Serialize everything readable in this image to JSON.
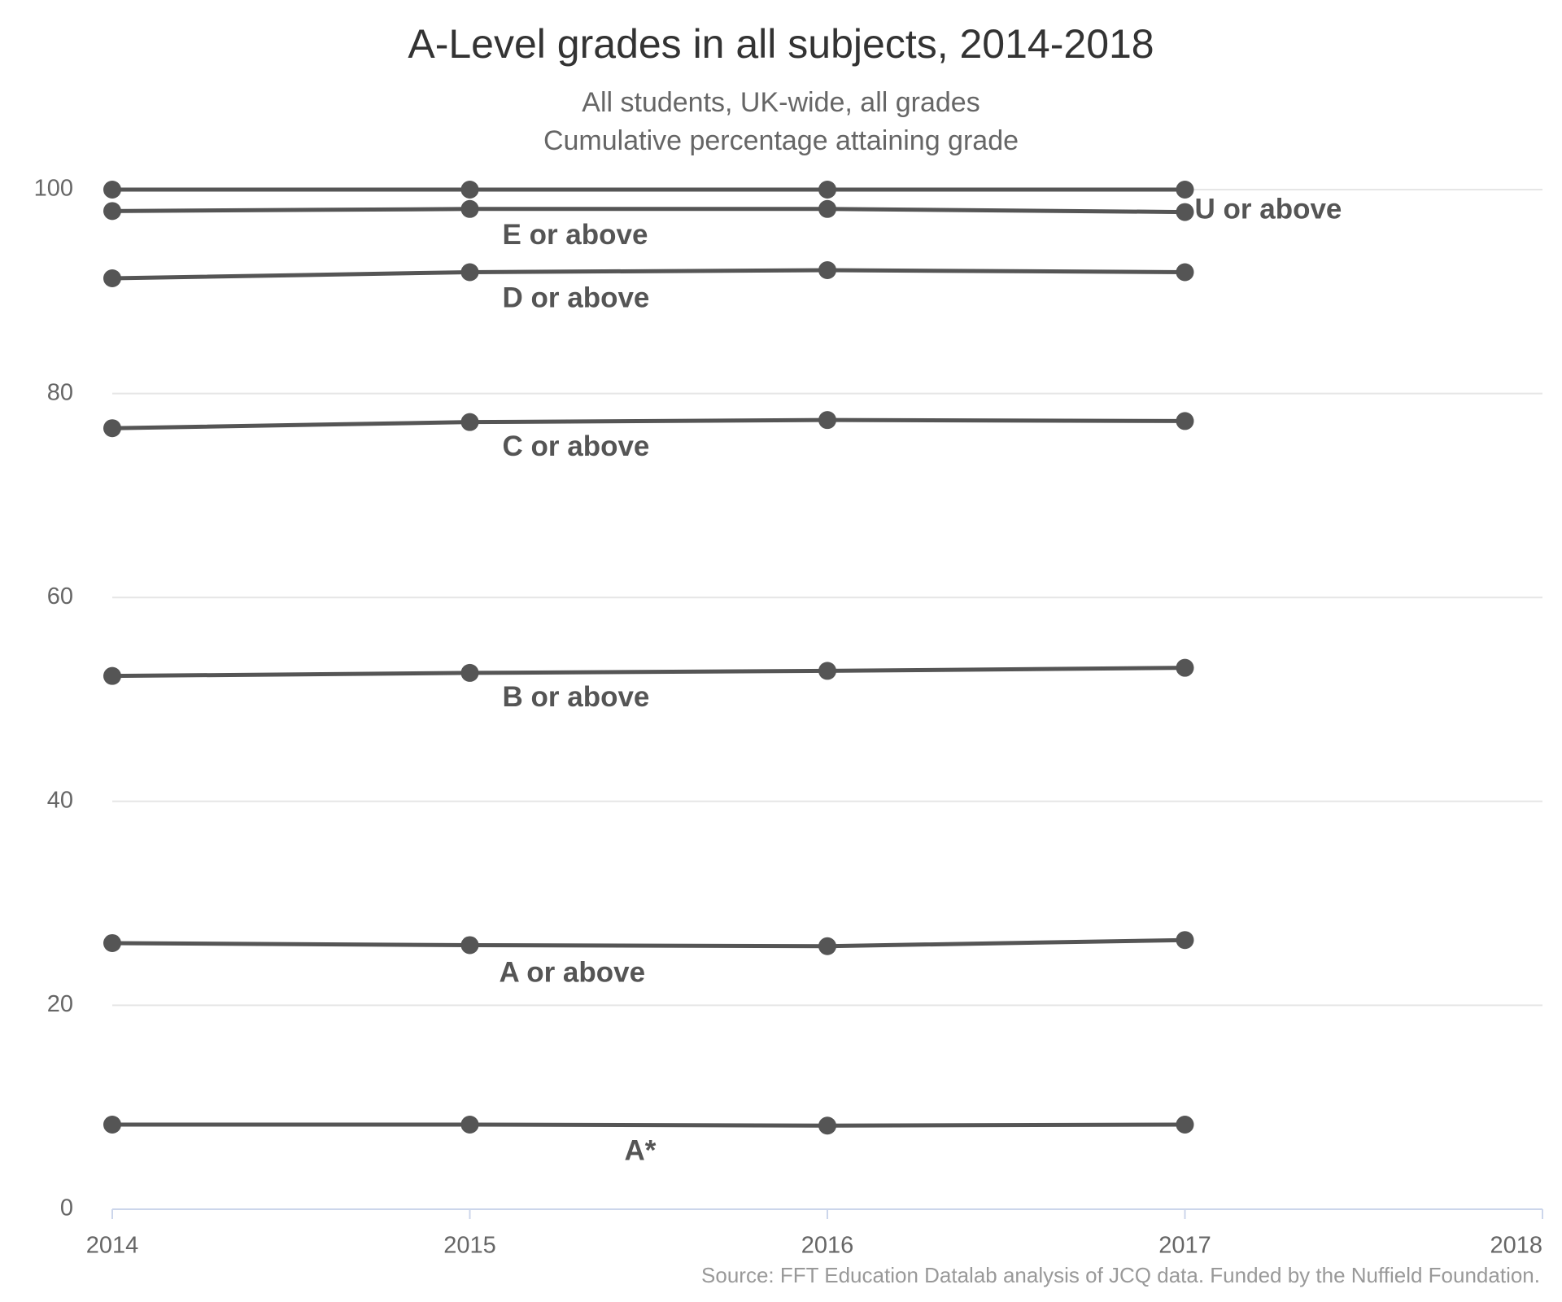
{
  "chart_data": {
    "type": "line",
    "title": "A-Level grades in all subjects, 2014-2018",
    "subtitle": [
      "All students, UK-wide, all grades",
      "Cumulative percentage attaining grade"
    ],
    "source": "Source: FFT Education Datalab analysis of JCQ data. Funded by the Nuffield Foundation.",
    "x": [
      2014,
      2015,
      2016,
      2017
    ],
    "xlim": [
      2014,
      2018
    ],
    "xticks": [
      2014,
      2015,
      2016,
      2017,
      2018
    ],
    "ylim": [
      0,
      100
    ],
    "yticks": [
      0,
      20,
      40,
      60,
      80,
      100
    ],
    "grid": true,
    "series": [
      {
        "name": "U or above",
        "color": "#555555",
        "values": [
          100,
          100,
          100,
          100
        ]
      },
      {
        "name": "E or above",
        "color": "#555555",
        "values": [
          97.9,
          98.1,
          98.1,
          97.8
        ]
      },
      {
        "name": "D or above",
        "color": "#555555",
        "values": [
          91.3,
          91.9,
          92.1,
          91.9
        ]
      },
      {
        "name": "C or above",
        "color": "#555555",
        "values": [
          76.6,
          77.2,
          77.4,
          77.3
        ]
      },
      {
        "name": "B or above",
        "color": "#555555",
        "values": [
          52.3,
          52.6,
          52.8,
          53.1
        ]
      },
      {
        "name": "A or above",
        "color": "#555555",
        "values": [
          26.1,
          25.9,
          25.8,
          26.4
        ]
      },
      {
        "name": "A*",
        "color": "#555555",
        "values": [
          8.3,
          8.3,
          8.2,
          8.3
        ]
      }
    ]
  }
}
